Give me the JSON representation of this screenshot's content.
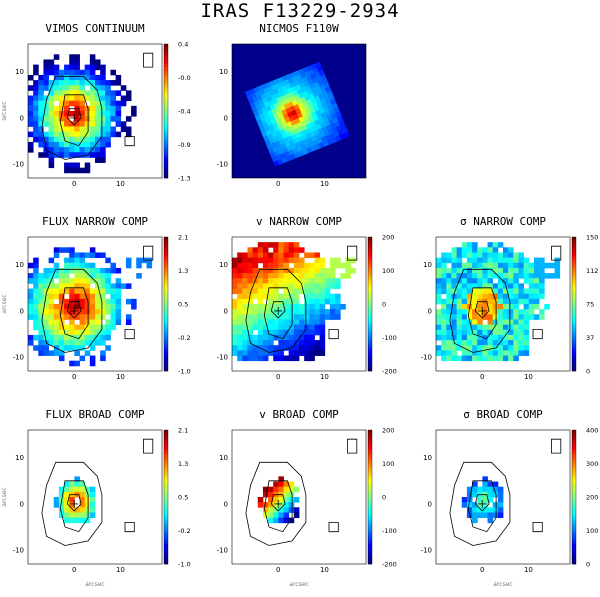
{
  "title": "IRAS F13229-2934",
  "axis_label": "arcsec",
  "x_ticks": [
    "0",
    "10"
  ],
  "y_ticks": [
    "10",
    "0",
    "-10"
  ],
  "panels": [
    {
      "id": "vimos-continuum",
      "title": "VIMOS CONTINUUM",
      "kind": "map",
      "colorbar": [
        "0.4",
        "-0.0",
        "-0.4",
        "-0.9",
        "-1.3"
      ],
      "show_ylabel": true,
      "show_xlabel": false
    },
    {
      "id": "nicmos-f110w",
      "title": "NICMOS F110W",
      "kind": "nicmos",
      "colorbar": [],
      "show_ylabel": false,
      "show_xlabel": false
    },
    {
      "id": "flux-narrow",
      "title": "FLUX NARROW COMP",
      "kind": "map",
      "colorbar": [
        "2.1",
        "1.3",
        "0.5",
        "-0.2",
        "-1.0"
      ],
      "show_ylabel": true,
      "show_xlabel": false
    },
    {
      "id": "v-narrow",
      "title": "v NARROW COMP",
      "kind": "velocity",
      "colorbar": [
        "200",
        "100",
        "0",
        "-100",
        "-200"
      ],
      "show_ylabel": false,
      "show_xlabel": false
    },
    {
      "id": "sigma-narrow",
      "title": "σ NARROW COMP",
      "kind": "sigma",
      "colorbar": [
        "150",
        "112",
        "75",
        "37",
        "0"
      ],
      "show_ylabel": false,
      "show_xlabel": false
    },
    {
      "id": "flux-broad",
      "title": "FLUX BROAD COMP",
      "kind": "broad",
      "colorbar": [
        "2.1",
        "1.3",
        "0.5",
        "-0.2",
        "-1.0"
      ],
      "show_ylabel": true,
      "show_xlabel": true
    },
    {
      "id": "v-broad",
      "title": "v BROAD COMP",
      "kind": "broad-v",
      "colorbar": [
        "200",
        "100",
        "0",
        "-100",
        "-200"
      ],
      "show_ylabel": false,
      "show_xlabel": true
    },
    {
      "id": "sigma-broad",
      "title": "σ BROAD COMP",
      "kind": "broad-s",
      "colorbar": [
        "400",
        "300",
        "200",
        "100",
        "0"
      ],
      "show_ylabel": false,
      "show_xlabel": true
    }
  ],
  "colors": {
    "jet_low": "#00007f",
    "jet_mid": "#7fff7f",
    "jet_high": "#7f0000",
    "contour": "#000000"
  }
}
